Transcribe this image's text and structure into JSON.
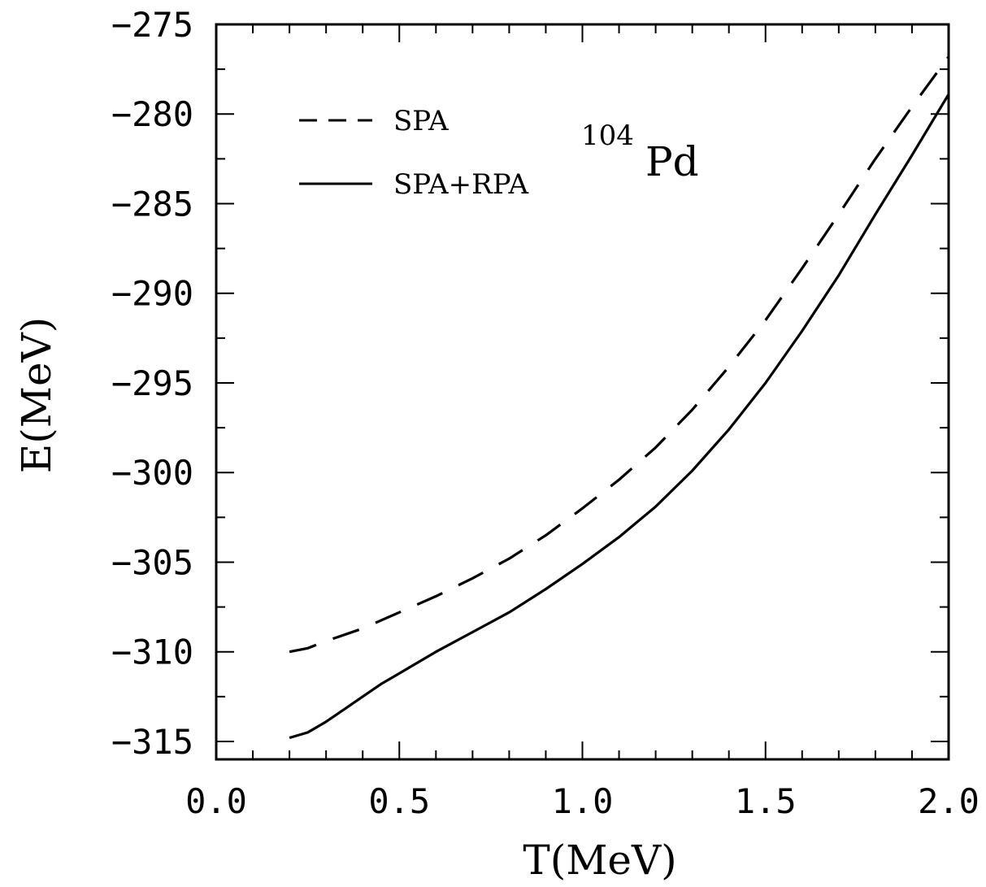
{
  "chart_data": {
    "type": "line",
    "title": "",
    "xlabel": "T(MeV)",
    "ylabel": "E(MeV)",
    "xlim": [
      0.0,
      2.0
    ],
    "ylim": [
      -316,
      -275
    ],
    "xticks": [
      0.0,
      0.5,
      1.0,
      1.5,
      2.0
    ],
    "xtick_labels": [
      "0.0",
      "0.5",
      "1.0",
      "1.5",
      "2.0"
    ],
    "yticks": [
      -275,
      -280,
      -285,
      -290,
      -295,
      -300,
      -305,
      -310,
      -315
    ],
    "ytick_labels": [
      "−275",
      "−280",
      "−285",
      "−290",
      "−295",
      "−300",
      "−305",
      "−310",
      "−315"
    ],
    "x_minor_step": 0.1,
    "y_minor_step": 2.5,
    "grid": false,
    "legend_position": "top-left",
    "annotation": {
      "mass_number": "104",
      "element": "Pd"
    },
    "series": [
      {
        "name": "SPA",
        "style": "dashed",
        "color": "#000000",
        "x": [
          0.2,
          0.25,
          0.3,
          0.4,
          0.5,
          0.6,
          0.7,
          0.8,
          0.9,
          1.0,
          1.1,
          1.2,
          1.3,
          1.4,
          1.5,
          1.6,
          1.7,
          1.8,
          1.9,
          2.0
        ],
        "y": [
          -310.0,
          -309.8,
          -309.4,
          -308.7,
          -307.8,
          -306.9,
          -305.9,
          -304.8,
          -303.5,
          -302.0,
          -300.4,
          -298.6,
          -296.5,
          -294.1,
          -291.5,
          -288.6,
          -285.6,
          -282.5,
          -279.6,
          -276.8
        ]
      },
      {
        "name": "SPA+RPA",
        "style": "solid",
        "color": "#000000",
        "x": [
          0.2,
          0.25,
          0.3,
          0.35,
          0.4,
          0.45,
          0.5,
          0.6,
          0.7,
          0.8,
          0.9,
          1.0,
          1.1,
          1.2,
          1.3,
          1.4,
          1.5,
          1.6,
          1.7,
          1.8,
          1.9,
          2.0
        ],
        "y": [
          -314.8,
          -314.5,
          -313.9,
          -313.2,
          -312.5,
          -311.8,
          -311.2,
          -310.0,
          -308.9,
          -307.8,
          -306.5,
          -305.1,
          -303.6,
          -301.9,
          -299.9,
          -297.6,
          -295.0,
          -292.1,
          -289.0,
          -285.6,
          -282.3,
          -278.9
        ]
      }
    ]
  }
}
